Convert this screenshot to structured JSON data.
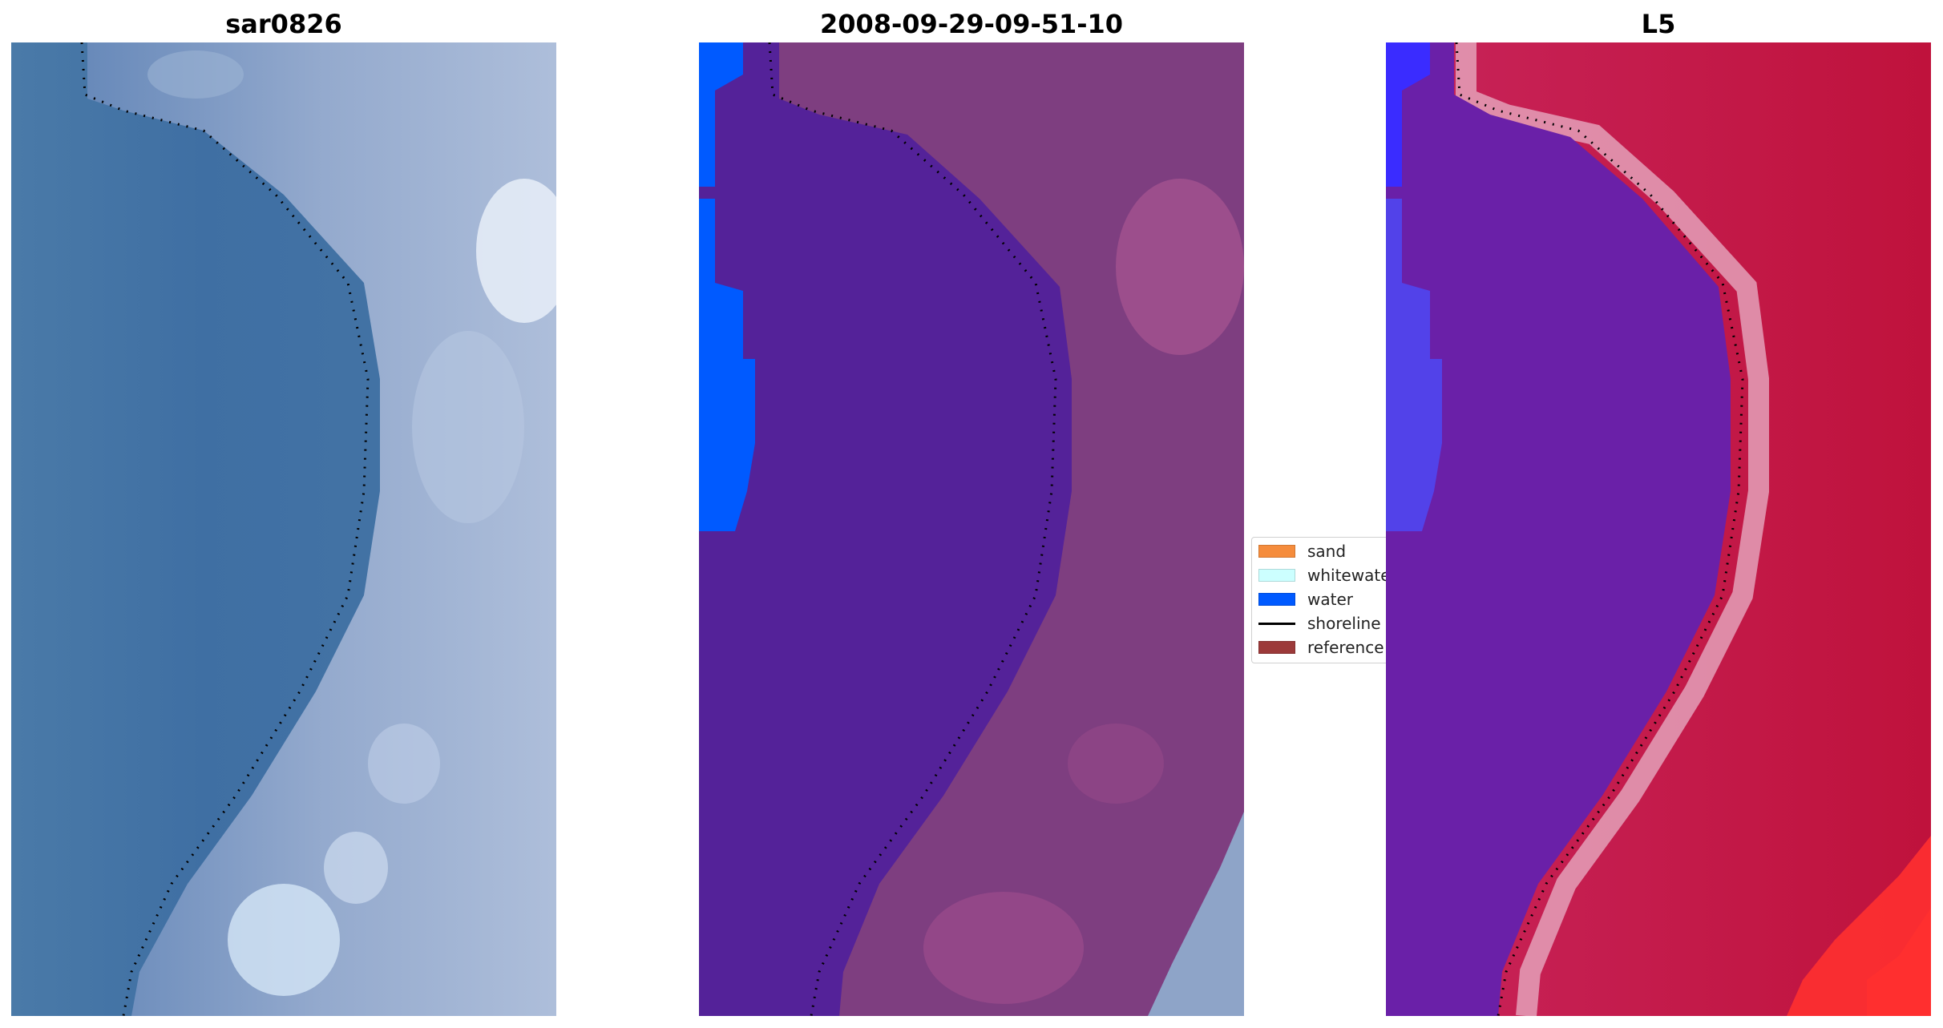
{
  "panels": [
    {
      "title": "sar0826",
      "kind": "rgb"
    },
    {
      "title": "2008-09-29-09-51-10",
      "kind": "classified"
    },
    {
      "title": "L5",
      "kind": "index"
    }
  ],
  "legend": {
    "items": [
      {
        "label": "sand",
        "type": "patch",
        "color": "#f58c3c"
      },
      {
        "label": "whitewater",
        "type": "patch",
        "color": "#ccffff"
      },
      {
        "label": "water",
        "type": "patch",
        "color": "#005aff"
      },
      {
        "label": "shoreline",
        "type": "line",
        "color": "#000000"
      },
      {
        "label": "reference shoreline",
        "type": "patch",
        "color": "#9c3a3a"
      }
    ]
  },
  "colors": {
    "rgb_water": "#4676a6",
    "rgb_land": "#8fa4c8",
    "class_water": "#542299",
    "class_land": "#7e3e80",
    "class_water_pixels": "#005aff",
    "index_water": "#6a20a8",
    "index_land": "#c0184a",
    "index_band": "#e4a0b8"
  }
}
